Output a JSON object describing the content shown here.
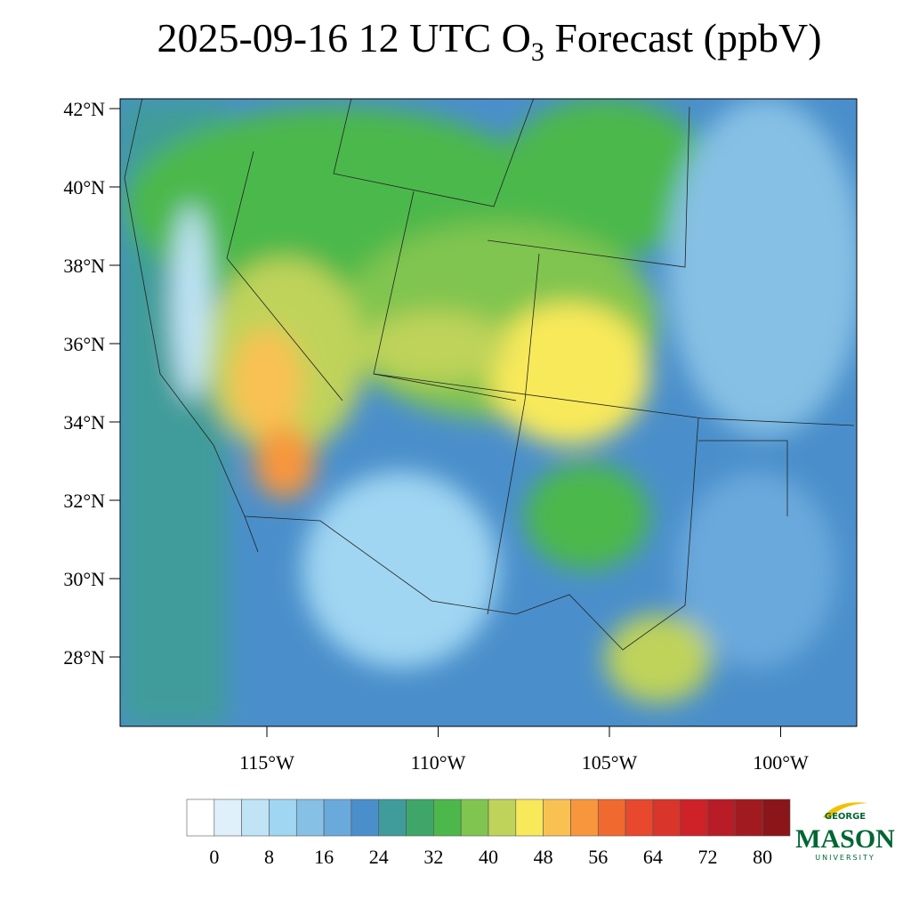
{
  "title": {
    "prefix": "2025-09-16 12 UTC O",
    "subscript": "3",
    "suffix": " Forecast (ppbV)"
  },
  "map": {
    "lat_ticks": [
      {
        "value": 42,
        "label": "42°N"
      },
      {
        "value": 40,
        "label": "40°N"
      },
      {
        "value": 38,
        "label": "38°N"
      },
      {
        "value": 36,
        "label": "36°N"
      },
      {
        "value": 34,
        "label": "34°N"
      },
      {
        "value": 32,
        "label": "32°N"
      },
      {
        "value": 30,
        "label": "30°N"
      },
      {
        "value": 28,
        "label": "28°N"
      }
    ],
    "lon_ticks": [
      {
        "value": -115,
        "label": "115°W"
      },
      {
        "value": -110,
        "label": "110°W"
      },
      {
        "value": -105,
        "label": "105°W"
      },
      {
        "value": -100,
        "label": "100°W"
      }
    ]
  },
  "colorbar": {
    "colors": [
      "#ffffff",
      "#dff0fa",
      "#c0e4f6",
      "#a0d6f2",
      "#86c0e4",
      "#6aa9dc",
      "#4a8fcb",
      "#3f9c9a",
      "#3fa66a",
      "#4cb84c",
      "#80c550",
      "#bfd35a",
      "#f8e95a",
      "#f9c152",
      "#f7963c",
      "#f06a30",
      "#e8492e",
      "#d9352a",
      "#cf2128",
      "#b81c26",
      "#a01a20",
      "#8b1519"
    ],
    "ticks": [
      0,
      8,
      16,
      24,
      32,
      40,
      48,
      56,
      64,
      72,
      80
    ]
  },
  "logo": {
    "top": "GEORGE",
    "main": "MASON",
    "bottom": "UNIVERSITY"
  }
}
